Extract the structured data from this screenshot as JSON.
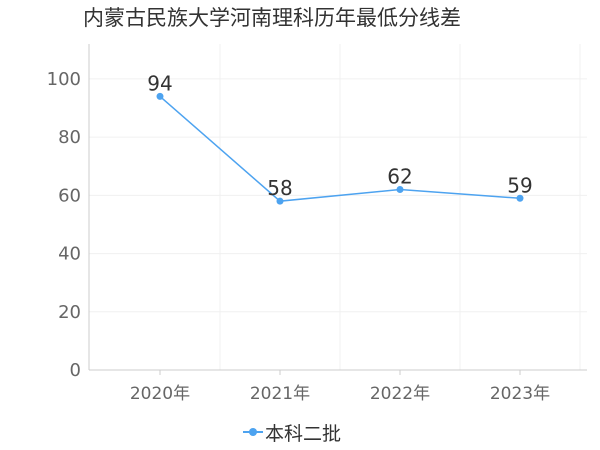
{
  "colors": {
    "series": "#4da3f0",
    "grid": "#f0f0f0",
    "axis": "#cccccc",
    "text": "#333333",
    "tick_text": "#666666"
  },
  "chart_data": {
    "type": "line",
    "title": "内蒙古民族大学河南理科历年最低分线差",
    "xlabel": "",
    "ylabel": "",
    "categories": [
      "2020年",
      "2021年",
      "2022年",
      "2023年"
    ],
    "y_ticks": [
      0,
      20,
      40,
      60,
      80,
      100
    ],
    "ylim": [
      0,
      112
    ],
    "grid": true,
    "legend_position": "bottom",
    "series": [
      {
        "name": "本科二批",
        "values": [
          94,
          58,
          62,
          59
        ],
        "data_labels": [
          "94",
          "58",
          "62",
          "59"
        ]
      }
    ]
  }
}
